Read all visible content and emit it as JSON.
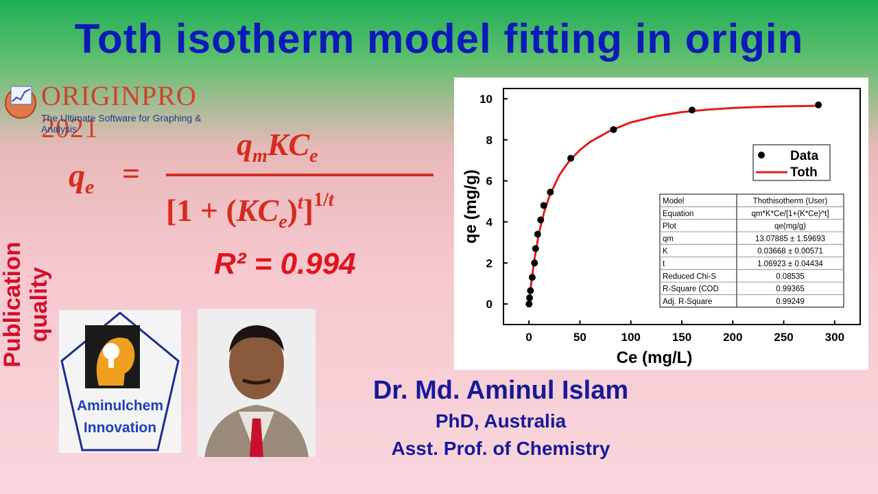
{
  "title": "Toth isotherm model fitting in origin",
  "side_label": "Publication quality",
  "origin_logo": {
    "brand": "ORIGINPRO 2021",
    "tagline": "The Ultimate Software for Graphing & Analysis"
  },
  "equation": {
    "lhs": "qe",
    "numerator": "qmKCe",
    "denominator": "[1 + (KCe)^t]^1/t"
  },
  "r_squared": "R² = 0.994",
  "institute_logo": {
    "line1": "Aminulchem",
    "line2": "Innovation"
  },
  "author": {
    "name": "Dr. Md. Aminul Islam",
    "degree": "PhD, Australia",
    "position": "Asst. Prof. of Chemistry"
  },
  "colors": {
    "title": "#0b1ab8",
    "side_label": "#d40d2a",
    "r_squared": "#e2141e",
    "author": "#17189a",
    "fit_line": "#e01c1c",
    "data_points": "#000000"
  },
  "chart_data": {
    "type": "scatter",
    "xlabel": "Ce (mg/L)",
    "ylabel": "qe (mg/g)",
    "xlim": [
      -25,
      325
    ],
    "ylim": [
      -1,
      10.5
    ],
    "xticks": [
      0,
      50,
      100,
      150,
      200,
      250,
      300
    ],
    "yticks": [
      0,
      2,
      4,
      6,
      8,
      10
    ],
    "legend_position": "top-right",
    "series": [
      {
        "name": "Data",
        "kind": "points",
        "x": [
          0.1,
          0.6,
          1.5,
          3.2,
          5.5,
          6.5,
          8.5,
          11.5,
          14.5,
          21,
          41,
          83,
          160,
          284
        ],
        "y": [
          0.0,
          0.3,
          0.65,
          1.3,
          2.0,
          2.7,
          3.4,
          4.1,
          4.8,
          5.45,
          7.1,
          8.5,
          9.45,
          9.7
        ]
      },
      {
        "name": "Toth",
        "kind": "fit_line",
        "x": [
          0,
          2,
          5,
          10,
          15,
          20,
          30,
          40,
          50,
          60,
          80,
          100,
          125,
          150,
          175,
          200,
          225,
          250,
          285
        ],
        "y": [
          0,
          0.9,
          2.07,
          3.5,
          4.5,
          5.25,
          6.3,
          7.0,
          7.5,
          7.9,
          8.45,
          8.85,
          9.15,
          9.35,
          9.47,
          9.55,
          9.6,
          9.63,
          9.66
        ]
      }
    ],
    "fit_table": {
      "rows": [
        [
          "Model",
          "Thothisotherm (User)"
        ],
        [
          "Equation",
          "qm*K*Ce/[1+(K*Ce)^t]"
        ],
        [
          "Plot",
          "qe(mg/g)"
        ],
        [
          "qm",
          "13.07885 ± 1.59693"
        ],
        [
          "K",
          "0.03668 ± 0.00571"
        ],
        [
          "t",
          "1.06923 ± 0.04434"
        ],
        [
          "Reduced Chi-S",
          "0.08535"
        ],
        [
          "R-Square (COD",
          "0.99365"
        ],
        [
          "Adj. R-Square",
          "0.99249"
        ]
      ]
    }
  }
}
